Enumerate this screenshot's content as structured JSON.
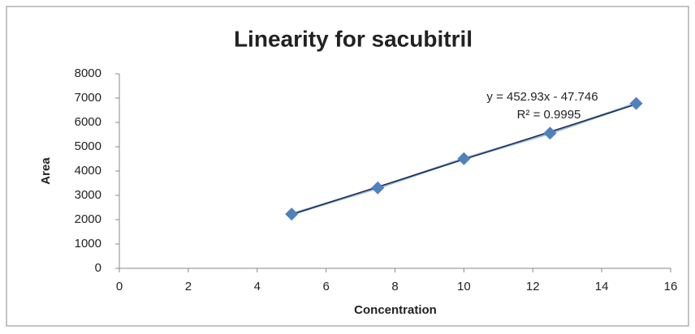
{
  "chart_data": {
    "type": "scatter",
    "title": "Linearity for sacubitril",
    "xlabel": "Concentration",
    "ylabel": "Area",
    "x": [
      5,
      7.5,
      10,
      12.5,
      15
    ],
    "series": [
      {
        "name": "Area",
        "color": "#4f81bd",
        "values": [
          2230,
          3310,
          4510,
          5560,
          6780
        ]
      }
    ],
    "xlim": [
      0,
      16
    ],
    "xticks": [
      0,
      2,
      4,
      6,
      8,
      10,
      12,
      14,
      16
    ],
    "ylim": [
      0,
      8000
    ],
    "yticks": [
      0,
      1000,
      2000,
      3000,
      4000,
      5000,
      6000,
      7000,
      8000
    ],
    "grid": false,
    "trendline": {
      "slope": 452.93,
      "intercept": -47.746,
      "color": "#1f2a44",
      "label": "y = 452.93x - 47.746",
      "r2_label": "R² = 0.9995"
    }
  }
}
